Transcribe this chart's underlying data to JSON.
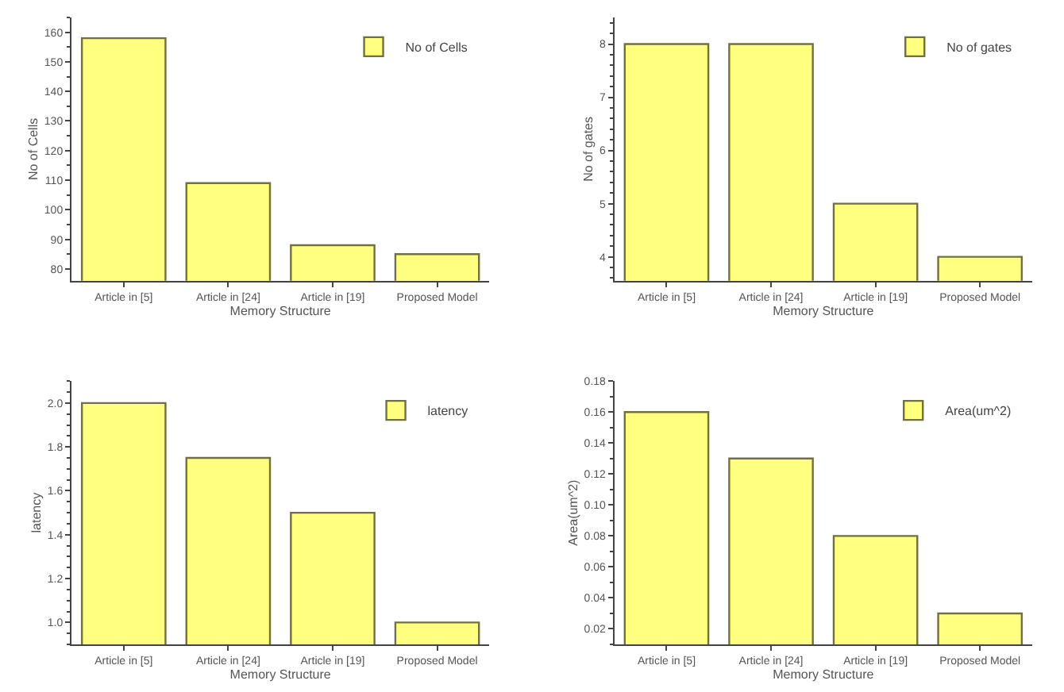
{
  "chart_data": [
    {
      "type": "bar",
      "xlabel": "Memory Structure",
      "ylabel": "No of Cells",
      "categories": [
        "Article in [5]",
        "Article in [24]",
        "Article in [19]",
        "Proposed Model"
      ],
      "series": [
        {
          "name": "No of Cells",
          "color": "#ffff80",
          "values": [
            158,
            109,
            88,
            85
          ]
        }
      ],
      "ylim": [
        76,
        165
      ],
      "yticks": [
        80,
        90,
        100,
        110,
        120,
        130,
        140,
        150,
        160
      ],
      "legend": "top right"
    },
    {
      "type": "bar",
      "xlabel": "Memory Structure",
      "ylabel": "No of gates",
      "categories": [
        "Article in [5]",
        "Article in [24]",
        "Article in [19]",
        "Proposed Model"
      ],
      "series": [
        {
          "name": "No of gates",
          "color": "#ffff80",
          "values": [
            8,
            8,
            5,
            4
          ]
        }
      ],
      "ylim": [
        3.55,
        8.5
      ],
      "yticks": [
        4,
        5,
        6,
        7,
        8
      ],
      "legend": "top right"
    },
    {
      "type": "bar",
      "xlabel": "Memory Structure",
      "ylabel": "latency",
      "categories": [
        "Article in [5]",
        "Article in [24]",
        "Article in [19]",
        "Proposed Model"
      ],
      "series": [
        {
          "name": "latency",
          "color": "#ffff80",
          "values": [
            2.0,
            1.75,
            1.5,
            1.0
          ]
        }
      ],
      "ylim": [
        0.9,
        2.1
      ],
      "yticks": [
        {
          "value": 1.0,
          "label": "1.0"
        },
        1.2,
        1.4,
        1.6,
        1.8,
        {
          "value": 2.0,
          "label": "2.0"
        }
      ],
      "legend": "top right"
    },
    {
      "type": "bar",
      "xlabel": "Memory Structure",
      "ylabel": "Area(um^2)",
      "categories": [
        "Article in [5]",
        "Article in [24]",
        "Article in [19]",
        "Proposed Model"
      ],
      "series": [
        {
          "name": "Area(um^2)",
          "color": "#ffff80",
          "values": [
            0.16,
            0.13,
            0.08,
            0.03
          ]
        }
      ],
      "ylim": [
        0.01,
        0.18
      ],
      "yticks": [
        0.02,
        0.04,
        0.06,
        0.08,
        {
          "value": 0.1,
          "label": "0.10"
        },
        0.12,
        0.14,
        0.16,
        0.18
      ],
      "legend": "top right"
    }
  ]
}
